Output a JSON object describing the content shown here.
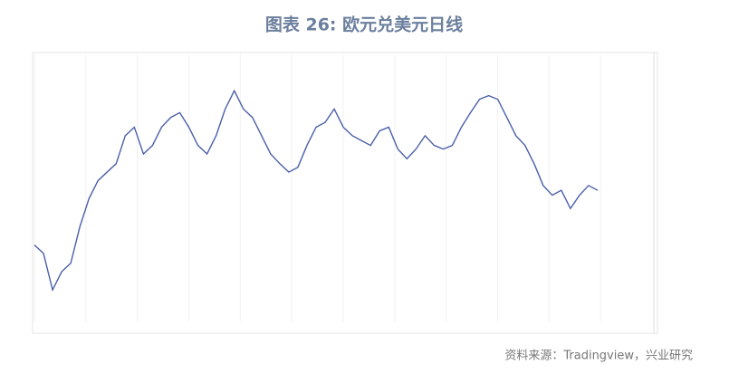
{
  "chart_data": {
    "type": "line",
    "title": "图表 26: 欧元兑美元日线",
    "source": "资料来源：Tradingview，兴业研究",
    "ylim": [
      0.94,
      1.16
    ],
    "grid": true,
    "series": [
      {
        "name": "EURUSD",
        "color": "#4a5fa8",
        "values": [
          1.003,
          0.996,
          0.966,
          0.981,
          0.988,
          1.018,
          1.041,
          1.056,
          1.063,
          1.07,
          1.093,
          1.1,
          1.078,
          1.085,
          1.1,
          1.108,
          1.112,
          1.1,
          1.085,
          1.078,
          1.093,
          1.115,
          1.13,
          1.115,
          1.108,
          1.093,
          1.078,
          1.07,
          1.063,
          1.067,
          1.085,
          1.1,
          1.104,
          1.115,
          1.1,
          1.093,
          1.089,
          1.085,
          1.097,
          1.1,
          1.082,
          1.074,
          1.082,
          1.093,
          1.085,
          1.082,
          1.085,
          1.1,
          1.112,
          1.123,
          1.126,
          1.123,
          1.108,
          1.093,
          1.085,
          1.07,
          1.052,
          1.044,
          1.048,
          1.033,
          1.044,
          1.052,
          1.048
        ]
      }
    ]
  }
}
